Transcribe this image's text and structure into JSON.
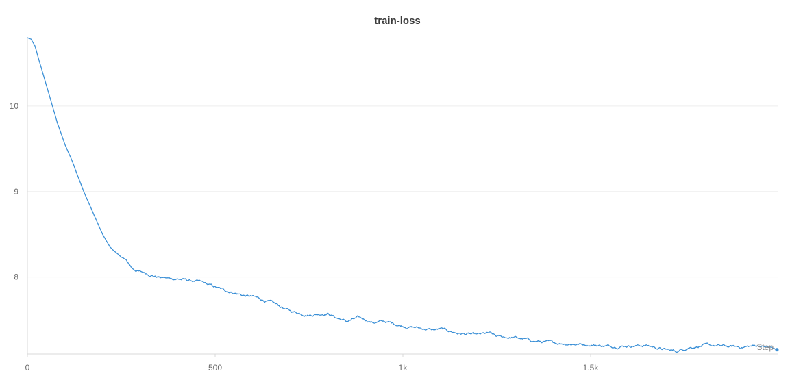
{
  "chart_data": {
    "type": "line",
    "title": "train-loss",
    "xlabel": "Step",
    "ylabel": "",
    "xlim": [
      0,
      2000
    ],
    "ylim": [
      7.1,
      10.8
    ],
    "x_ticks": [
      0,
      500,
      1000,
      1500
    ],
    "x_tick_labels": [
      "0",
      "500",
      "1k",
      "1.5k"
    ],
    "y_ticks": [
      8,
      9,
      10
    ],
    "y_tick_labels": [
      "8",
      "9",
      "10"
    ],
    "grid": true,
    "legend": "none",
    "colors": {
      "series": "#3a8fd6",
      "grid": "#eeeeee",
      "axis": "#d9d9d9"
    },
    "series": [
      {
        "x": [
          0,
          10,
          20,
          30,
          50,
          80,
          100,
          120,
          150,
          180,
          200,
          220,
          240,
          260,
          280,
          300,
          320,
          350,
          380,
          400,
          430,
          460,
          500,
          520,
          550,
          580,
          600,
          650,
          700,
          750,
          800,
          820,
          850,
          880,
          900,
          920,
          950,
          980,
          1000,
          1050,
          1080,
          1100,
          1150,
          1200,
          1230,
          1250,
          1300,
          1350,
          1400,
          1450,
          1500,
          1550,
          1600,
          1650,
          1700,
          1730,
          1760,
          1800,
          1850,
          1900,
          1950,
          2000
        ],
        "y": [
          10.8,
          10.78,
          10.7,
          10.55,
          10.25,
          9.8,
          9.55,
          9.35,
          9.0,
          8.7,
          8.5,
          8.35,
          8.27,
          8.2,
          8.1,
          8.06,
          8.04,
          8.0,
          7.98,
          7.98,
          7.96,
          7.94,
          7.88,
          7.85,
          7.82,
          7.78,
          7.77,
          7.7,
          7.6,
          7.56,
          7.58,
          7.53,
          7.48,
          7.52,
          7.5,
          7.47,
          7.48,
          7.45,
          7.43,
          7.4,
          7.38,
          7.39,
          7.34,
          7.32,
          7.34,
          7.3,
          7.29,
          7.25,
          7.23,
          7.22,
          7.21,
          7.19,
          7.2,
          7.2,
          7.15,
          7.13,
          7.18,
          7.2,
          7.19,
          7.18,
          7.2,
          7.15
        ]
      }
    ]
  }
}
